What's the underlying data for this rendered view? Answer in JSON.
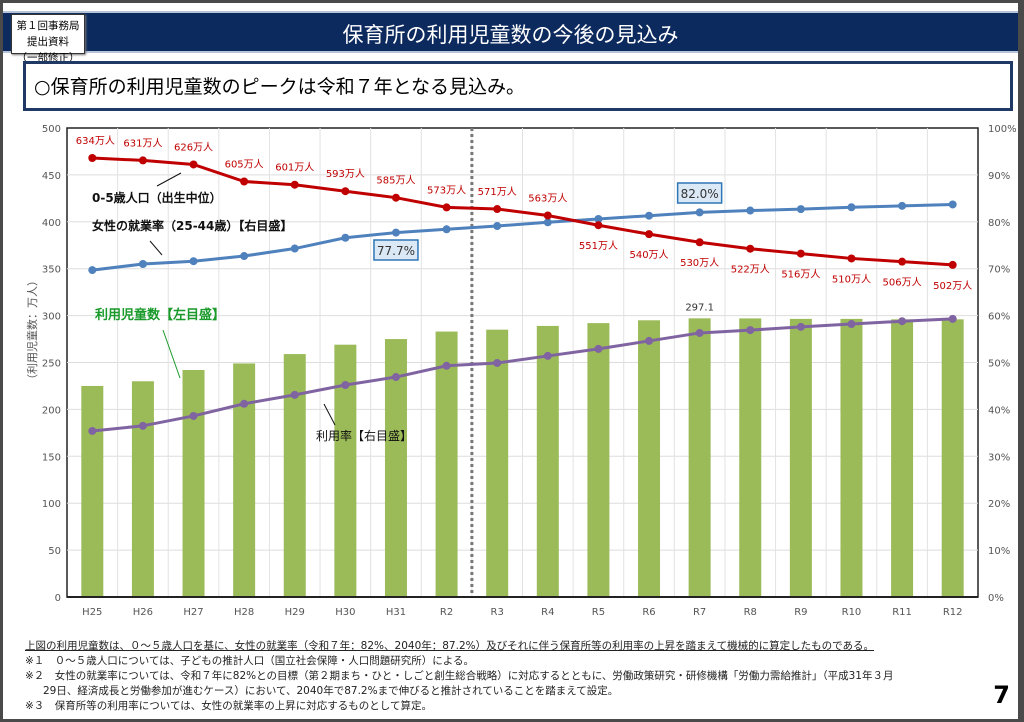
{
  "badge": {
    "line1": "第１回事務局提出資料",
    "line2": "（一部修正）"
  },
  "header": {
    "title": "保育所の利用児童数の今後の見込み"
  },
  "lead": "○保育所の利用児童数のピークは令和７年となる見込み。",
  "chart_data": {
    "type": "bar+line",
    "categories": [
      "H25",
      "H26",
      "H27",
      "H28",
      "H29",
      "H30",
      "H31",
      "R2",
      "R3",
      "R4",
      "R5",
      "R6",
      "R7",
      "R8",
      "R9",
      "R10",
      "R11",
      "R12"
    ],
    "ylabel_left": "（利用児童数：万人）",
    "ylim_left": [
      0,
      500
    ],
    "yticks_left": [
      "0",
      "50",
      "100",
      "150",
      "200",
      "250",
      "300",
      "350",
      "400",
      "450",
      "500"
    ],
    "ylim_right": [
      0,
      100
    ],
    "yticks_right": [
      "0%",
      "10%",
      "20%",
      "30%",
      "40%",
      "50%",
      "60%",
      "70%",
      "80%",
      "90%",
      "100%"
    ],
    "grid": true,
    "divider_between": [
      "R2",
      "R3"
    ],
    "series": [
      {
        "name": "利用児童数【左目盛】",
        "kind": "bar",
        "axis": "left",
        "color": "#9bbb59",
        "values": [
          225,
          230,
          242,
          249,
          259,
          269,
          275,
          283,
          285,
          289,
          292,
          295,
          297.1,
          297,
          296.5,
          296.5,
          296,
          296
        ],
        "data_label": {
          "index": 12,
          "text": "297.1"
        }
      },
      {
        "name": "0-5歳人口（出生中位）",
        "kind": "line",
        "axis": "hidden",
        "color": "#c00000",
        "values": [
          634,
          631,
          626,
          605,
          601,
          593,
          585,
          573,
          571,
          563,
          551,
          540,
          530,
          522,
          516,
          510,
          506,
          502
        ],
        "labels": [
          "634万人",
          "631万人",
          "626万人",
          "605万人",
          "601万人",
          "593万人",
          "585万人",
          "573万人",
          "571万人",
          "563万人",
          "551万人",
          "540万人",
          "530万人",
          "522万人",
          "516万人",
          "510万人",
          "506万人",
          "502万人"
        ]
      },
      {
        "name": "女性の就業率（25-44歳）【右目盛】",
        "kind": "line",
        "axis": "right",
        "color": "#4f81bd",
        "values": [
          69.7,
          71.0,
          71.6,
          72.7,
          74.3,
          76.6,
          77.7,
          78.4,
          79.1,
          79.9,
          80.6,
          81.3,
          82.0,
          82.4,
          82.7,
          83.1,
          83.4,
          83.7
        ],
        "callouts": [
          {
            "index": 6,
            "text": "77.7%"
          },
          {
            "index": 12,
            "text": "82.0%"
          }
        ]
      },
      {
        "name": "利用率【右目盛】",
        "kind": "line",
        "axis": "right",
        "color": "#8064a2",
        "values": [
          35.4,
          36.5,
          38.6,
          41.2,
          43.1,
          45.2,
          46.9,
          49.3,
          49.9,
          51.4,
          52.9,
          54.6,
          56.3,
          56.9,
          57.6,
          58.2,
          58.8,
          59.3
        ]
      }
    ]
  },
  "notes": {
    "main": "上図の利用児童数は、０～５歳人口を基に、女性の就業率（令和７年：82%、2040年：87.2%）及びそれに伴う保育所等の利用率の上昇を踏まえて機械的に算定したものである。",
    "n1": "※１　０～５歳人口については、子どもの推計人口（国立社会保障・人口問題研究所）による。",
    "n2a": "※２　女性の就業率については、令和７年に82%との目標（第２期まち・ひと・しごと創生総合戦略）に対応するとともに、労働政策研究・研修機構「労働力需給推計」（平成31年３月",
    "n2b": "29日、経済成長と労働参加が進むケース）において、2040年で87.2%まで伸びると推計されていることを踏まえて設定。",
    "n3": "※３　保育所等の利用率については、女性の就業率の上昇に対応するものとして算定。"
  },
  "page_number": "7"
}
